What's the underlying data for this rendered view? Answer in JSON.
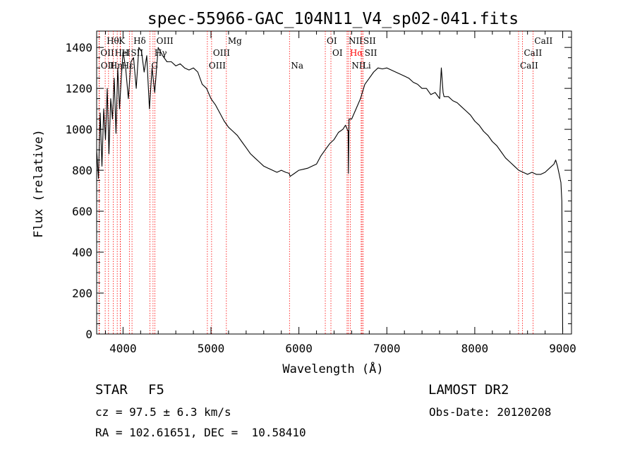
{
  "chart_data": {
    "type": "line",
    "title": "spec-55966-GAC_104N11_V4_sp02-041.fits",
    "xlabel": "Wavelength (Å)",
    "ylabel": "Flux (relative)",
    "xlim": [
      3700,
      9100
    ],
    "ylim": [
      0,
      1480
    ],
    "xticks": [
      4000,
      5000,
      6000,
      7000,
      8000,
      9000
    ],
    "yticks": [
      0,
      200,
      400,
      600,
      800,
      1000,
      1200,
      1400
    ],
    "grid": false,
    "series": [
      {
        "x": [
          3700,
          3720,
          3740,
          3760,
          3780,
          3800,
          3820,
          3840,
          3860,
          3880,
          3900,
          3920,
          3940,
          3960,
          3980,
          4000,
          4030,
          4060,
          4090,
          4120,
          4150,
          4180,
          4210,
          4240,
          4270,
          4300,
          4330,
          4360,
          4400,
          4450,
          4500,
          4550,
          4600,
          4650,
          4700,
          4750,
          4800,
          4850,
          4900,
          4950,
          5000,
          5050,
          5100,
          5150,
          5200,
          5250,
          5300,
          5350,
          5400,
          5450,
          5500,
          5550,
          5600,
          5650,
          5700,
          5750,
          5800,
          5850,
          5890,
          5900,
          5950,
          6000,
          6050,
          6100,
          6150,
          6200,
          6250,
          6300,
          6350,
          6400,
          6450,
          6500,
          6530,
          6560,
          6563,
          6570,
          6600,
          6650,
          6700,
          6750,
          6800,
          6850,
          6900,
          6950,
          7000,
          7050,
          7100,
          7150,
          7200,
          7250,
          7300,
          7350,
          7400,
          7450,
          7500,
          7550,
          7600,
          7620,
          7640,
          7650,
          7700,
          7750,
          7800,
          7850,
          7900,
          7950,
          8000,
          8050,
          8100,
          8150,
          8200,
          8250,
          8300,
          8350,
          8400,
          8450,
          8500,
          8550,
          8600,
          8650,
          8700,
          8750,
          8800,
          8850,
          8900,
          8920,
          8940,
          8960,
          8980,
          8990,
          9000
        ],
        "values": [
          900,
          760,
          1080,
          820,
          1100,
          950,
          1200,
          880,
          1150,
          1050,
          1250,
          980,
          1300,
          1100,
          1250,
          1380,
          1300,
          1150,
          1330,
          1350,
          1200,
          1400,
          1380,
          1280,
          1360,
          1100,
          1300,
          1180,
          1400,
          1360,
          1330,
          1330,
          1310,
          1320,
          1300,
          1290,
          1300,
          1280,
          1220,
          1200,
          1150,
          1120,
          1080,
          1040,
          1010,
          990,
          970,
          940,
          910,
          880,
          860,
          840,
          820,
          810,
          800,
          790,
          800,
          790,
          785,
          770,
          785,
          800,
          805,
          810,
          820,
          830,
          870,
          900,
          930,
          950,
          985,
          1000,
          1020,
          990,
          785,
          1050,
          1050,
          1100,
          1150,
          1220,
          1250,
          1280,
          1300,
          1295,
          1300,
          1290,
          1280,
          1270,
          1260,
          1250,
          1230,
          1220,
          1200,
          1200,
          1170,
          1180,
          1150,
          1300,
          1180,
          1160,
          1160,
          1140,
          1130,
          1110,
          1090,
          1070,
          1040,
          1020,
          990,
          970,
          940,
          920,
          890,
          860,
          840,
          820,
          800,
          790,
          780,
          790,
          780,
          780,
          790,
          810,
          830,
          850,
          820,
          780,
          740,
          650,
          10
        ]
      }
    ],
    "line_markers": [
      {
        "label": "Hθ",
        "x": 3797,
        "row": 0,
        "color": "#000000"
      },
      {
        "label": "K",
        "x": 3934,
        "row": 0,
        "color": "#000000"
      },
      {
        "label": "Hδ",
        "x": 4102,
        "row": 0,
        "color": "#000000"
      },
      {
        "label": "OIII",
        "x": 4363,
        "row": 0,
        "color": "#000000"
      },
      {
        "label": "Mg",
        "x": 5175,
        "row": 0,
        "color": "#000000"
      },
      {
        "label": "OI",
        "x": 6300,
        "row": 0,
        "color": "#000000"
      },
      {
        "label": "NII",
        "x": 6548,
        "row": 0,
        "color": "#000000"
      },
      {
        "label": "SII",
        "x": 6717,
        "row": 0,
        "color": "#000000"
      },
      {
        "label": "CaII",
        "x": 8662,
        "row": 0,
        "color": "#000000"
      },
      {
        "label": "OII",
        "x": 3727,
        "row": 1,
        "color": "#000000"
      },
      {
        "label": "HeI",
        "x": 3889,
        "row": 1,
        "color": "#000000"
      },
      {
        "label": "H",
        "x": 3968,
        "row": 1,
        "color": "#000000"
      },
      {
        "label": "SII",
        "x": 4072,
        "row": 1,
        "color": "#000000"
      },
      {
        "label": "Hγ",
        "x": 4341,
        "row": 1,
        "color": "#000000"
      },
      {
        "label": "OIII",
        "x": 5007,
        "row": 1,
        "color": "#000000"
      },
      {
        "label": "OI",
        "x": 6364,
        "row": 1,
        "color": "#000000"
      },
      {
        "label": "Hα",
        "x": 6563,
        "row": 1,
        "color": "#ff0000"
      },
      {
        "label": "SII",
        "x": 6731,
        "row": 1,
        "color": "#000000"
      },
      {
        "label": "CaII",
        "x": 8542,
        "row": 1,
        "color": "#000000"
      },
      {
        "label": "OII",
        "x": 3730,
        "row": 2,
        "color": "#000000"
      },
      {
        "label": "Hη",
        "x": 3835,
        "row": 2,
        "color": "#000000"
      },
      {
        "label": "Hε",
        "x": 3970,
        "row": 2,
        "color": "#000000"
      },
      {
        "label": "G",
        "x": 4305,
        "row": 2,
        "color": "#000000"
      },
      {
        "label": "OIII",
        "x": 4959,
        "row": 2,
        "color": "#000000"
      },
      {
        "label": "Na",
        "x": 5893,
        "row": 2,
        "color": "#000000"
      },
      {
        "label": "NII",
        "x": 6584,
        "row": 2,
        "color": "#000000"
      },
      {
        "label": "Li",
        "x": 6708,
        "row": 2,
        "color": "#000000"
      },
      {
        "label": "CaII",
        "x": 8498,
        "row": 2,
        "color": "#000000"
      }
    ],
    "marker_line_color": "#ff0000"
  },
  "info": {
    "object_class": "STAR",
    "subclass": "F5",
    "redshift": "cz = 97.5 ± 6.3 km/s",
    "coordinates": "RA = 102.61651, DEC =  10.58410",
    "survey": "LAMOST DR2",
    "obs_date": "Obs-Date: 20120208"
  }
}
